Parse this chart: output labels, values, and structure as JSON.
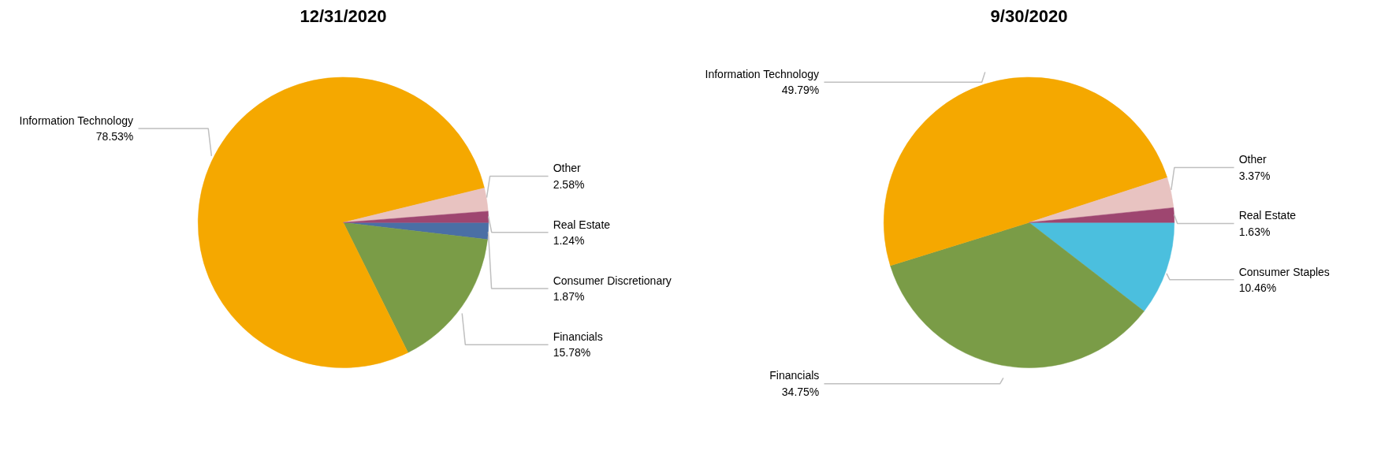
{
  "chart_data": [
    {
      "type": "pie",
      "title": "12/31/2020",
      "categories": [
        "Consumer Discretionary",
        "Financials",
        "Information Technology",
        "Other",
        "Real Estate"
      ],
      "values": [
        1.87,
        15.78,
        78.53,
        2.58,
        1.24
      ],
      "value_labels": [
        "1.87%",
        "15.78%",
        "78.53%",
        "2.58%",
        "1.24%"
      ],
      "colors": [
        "#4a6fa5",
        "#7a9c47",
        "#f5a800",
        "#e8c3c1",
        "#9e4670"
      ]
    },
    {
      "type": "pie",
      "title": "9/30/2020",
      "categories": [
        "Consumer Staples",
        "Financials",
        "Information Technology",
        "Other",
        "Real Estate"
      ],
      "values": [
        10.46,
        34.75,
        49.79,
        3.37,
        1.63
      ],
      "value_labels": [
        "10.46%",
        "34.75%",
        "49.79%",
        "3.37%",
        "1.63%"
      ],
      "colors": [
        "#4bbfde",
        "#7a9c47",
        "#f5a800",
        "#e8c3c1",
        "#9e4670"
      ]
    }
  ]
}
